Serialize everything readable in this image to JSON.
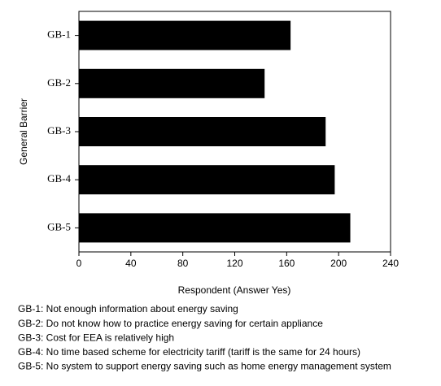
{
  "chart_data": {
    "type": "hbar",
    "categories": [
      "GB-1",
      "GB-2",
      "GB-3",
      "GB-4",
      "GB-5"
    ],
    "values": [
      163,
      143,
      190,
      197,
      209
    ],
    "color": "#000000",
    "xlabel": "Respondent  (Answer Yes)",
    "ylabel": "General Barrier",
    "xlim": [
      0,
      240
    ],
    "xticks": [
      0,
      40,
      80,
      120,
      160,
      200,
      240
    ],
    "grid": false,
    "annotations": [
      "GB-1: Not enough information about energy saving",
      "GB-2: Do not know how to practice energy saving for certain appliance",
      "GB-3: Cost for EEA is relatively high",
      "GB-4: No time based scheme for electricity tariff (tariff is the same for 24 hours)",
      "GB-5: No system to support energy saving such as home energy management system"
    ]
  }
}
